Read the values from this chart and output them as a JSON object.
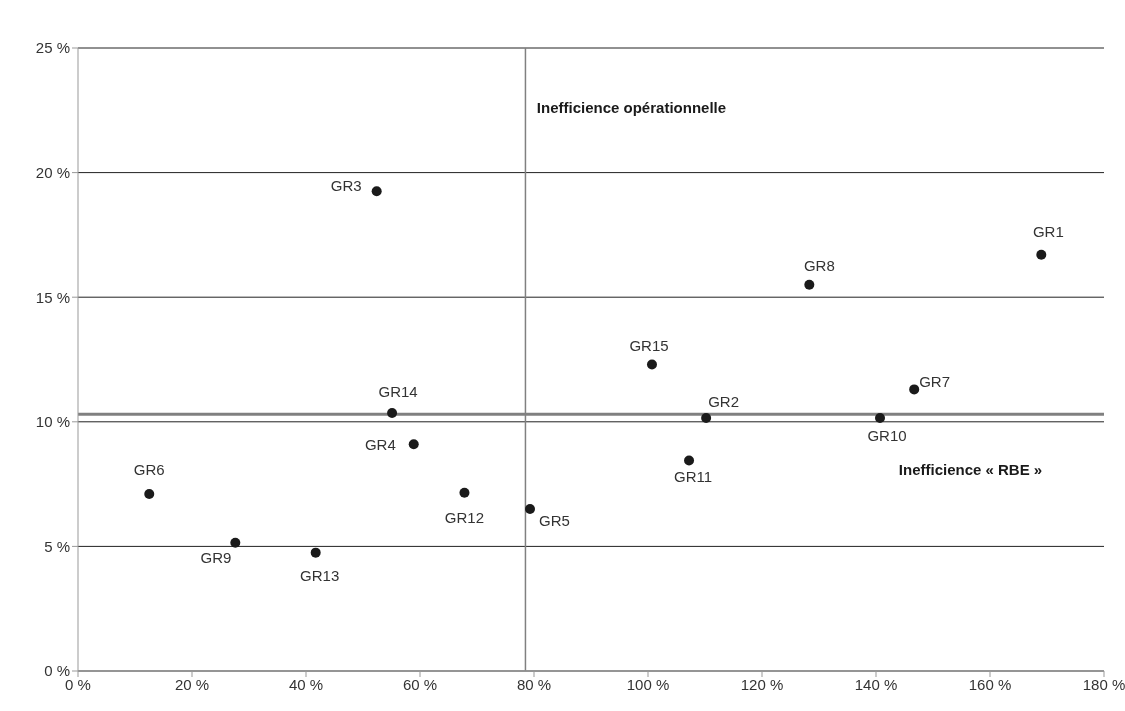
{
  "chart_data": {
    "type": "scatter",
    "xlim": [
      0,
      180
    ],
    "xticks": [
      {
        "value": 0,
        "label": "0 %"
      },
      {
        "value": 20,
        "label": "20 %"
      },
      {
        "value": 40,
        "label": "40 %"
      },
      {
        "value": 60,
        "label": "60 %"
      },
      {
        "value": 80,
        "label": "80 %"
      },
      {
        "value": 100,
        "label": "100 %"
      },
      {
        "value": 120,
        "label": "120 %"
      },
      {
        "value": 140,
        "label": "140 %"
      },
      {
        "value": 160,
        "label": "160 %"
      },
      {
        "value": 180,
        "label": "180 %"
      }
    ],
    "ylim": [
      0,
      25
    ],
    "yticks": [
      {
        "value": 0,
        "label": "0 %"
      },
      {
        "value": 5,
        "label": "5 %"
      },
      {
        "value": 10,
        "label": "10 %"
      },
      {
        "value": 15,
        "label": "15 %"
      },
      {
        "value": 20,
        "label": "20 %"
      },
      {
        "value": 25,
        "label": "25 %"
      }
    ],
    "grid": "y",
    "marker": "circle",
    "series": [
      {
        "name": "GR1",
        "color": "#1a1a1a",
        "x": [
          169
        ],
        "values": [
          16.7
        ]
      },
      {
        "name": "GR2",
        "color": "#1a1a1a",
        "x": [
          110.2
        ],
        "values": [
          10.15
        ]
      },
      {
        "name": "GR3",
        "color": "#1a1a1a",
        "x": [
          52.4
        ],
        "values": [
          19.25
        ]
      },
      {
        "name": "GR4",
        "color": "#1a1a1a",
        "x": [
          58.9
        ],
        "values": [
          9.1
        ]
      },
      {
        "name": "GR5",
        "color": "#1a1a1a",
        "x": [
          79.3
        ],
        "values": [
          6.5
        ]
      },
      {
        "name": "GR6",
        "color": "#1a1a1a",
        "x": [
          12.5
        ],
        "values": [
          7.1
        ]
      },
      {
        "name": "GR7",
        "color": "#1a1a1a",
        "x": [
          146.7
        ],
        "values": [
          11.3
        ]
      },
      {
        "name": "GR8",
        "color": "#1a1a1a",
        "x": [
          128.3
        ],
        "values": [
          15.5
        ]
      },
      {
        "name": "GR9",
        "color": "#1a1a1a",
        "x": [
          27.6
        ],
        "values": [
          5.15
        ]
      },
      {
        "name": "GR10",
        "color": "#1a1a1a",
        "x": [
          140.7
        ],
        "values": [
          10.15
        ]
      },
      {
        "name": "GR11",
        "color": "#1a1a1a",
        "x": [
          107.2
        ],
        "values": [
          8.45
        ]
      },
      {
        "name": "GR12",
        "color": "#1a1a1a",
        "x": [
          67.8
        ],
        "values": [
          7.15
        ]
      },
      {
        "name": "GR13",
        "color": "#1a1a1a",
        "x": [
          41.7
        ],
        "values": [
          4.75
        ]
      },
      {
        "name": "GR14",
        "color": "#1a1a1a",
        "x": [
          55.1
        ],
        "values": [
          10.35
        ]
      },
      {
        "name": "GR15",
        "color": "#1a1a1a",
        "x": [
          100.7
        ],
        "values": [
          12.3
        ]
      }
    ],
    "ref_lines": [
      {
        "axis": "x",
        "value": 78.5,
        "color": "#808080"
      },
      {
        "axis": "y",
        "value": 10.3,
        "color": "#808080"
      }
    ],
    "annotations": [
      "Inefficience opérationnelle",
      "Inefficience « RBE »"
    ]
  }
}
